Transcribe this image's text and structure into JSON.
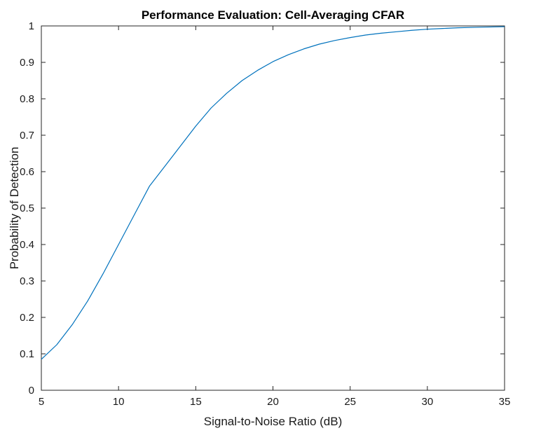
{
  "chart_data": {
    "type": "line",
    "title": "Performance Evaluation: Cell-Averaging CFAR",
    "xlabel": "Signal-to-Noise Ratio (dB)",
    "ylabel": "Probability of Detection",
    "xlim": [
      5,
      35
    ],
    "ylim": [
      0,
      1
    ],
    "xticks": [
      5,
      10,
      15,
      20,
      25,
      30,
      35
    ],
    "yticks": [
      0,
      0.1,
      0.2,
      0.3,
      0.4,
      0.5,
      0.6,
      0.7,
      0.8,
      0.9,
      1
    ],
    "xtick_labels": [
      "5",
      "10",
      "15",
      "20",
      "25",
      "30",
      "35"
    ],
    "ytick_labels": [
      "0",
      "0.1",
      "0.2",
      "0.3",
      "0.4",
      "0.5",
      "0.6",
      "0.7",
      "0.8",
      "0.9",
      "1"
    ],
    "grid": false,
    "series": [
      {
        "color": "#0072BD",
        "x": [
          5,
          6,
          7,
          8,
          9,
          10,
          11,
          12,
          13,
          14,
          15,
          16,
          17,
          18,
          19,
          20,
          21,
          22,
          23,
          24,
          25,
          26,
          27,
          28,
          29,
          30,
          31,
          32,
          33,
          34,
          35
        ],
        "y": [
          0.085,
          0.125,
          0.18,
          0.245,
          0.32,
          0.4,
          0.48,
          0.56,
          0.615,
          0.67,
          0.725,
          0.775,
          0.815,
          0.85,
          0.878,
          0.902,
          0.921,
          0.937,
          0.95,
          0.96,
          0.968,
          0.975,
          0.98,
          0.984,
          0.988,
          0.991,
          0.993,
          0.995,
          0.996,
          0.997,
          0.998
        ]
      }
    ]
  }
}
